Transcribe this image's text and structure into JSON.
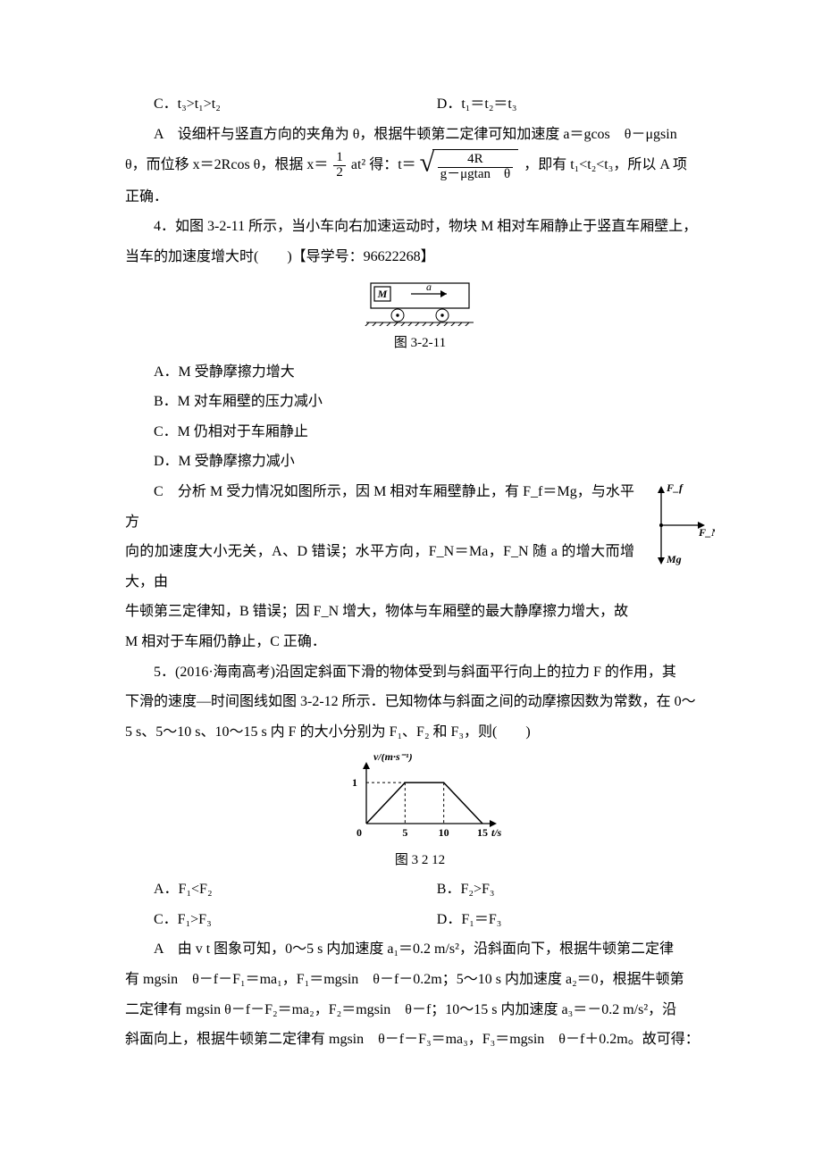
{
  "q3": {
    "optC": "C．t₃>t₁>t₂",
    "optD": "D．t₁＝t₂＝t₃",
    "answer_label": "A",
    "expl_line1": "设细杆与竖直方向的夹角为 θ，根据牛顿第二定律可知加速度 a＝gcos　θ－μgsin",
    "expl_line2a": "θ，而位移 x＝2Rcos θ，根据 x＝",
    "frac1_num": "1",
    "frac1_den": "2",
    "expl_line2b": "at² 得：t＝",
    "sqrt_num": "4R",
    "sqrt_den": "g－μgtan　θ",
    "expl_line2c": "，即有 t₁<t₂<t₃，所以 A 项",
    "expl_line3": "正确．"
  },
  "q4": {
    "stem1": "4．如图 3-2-11 所示，当小车向右加速运动时，物块 M 相对车厢静止于竖直车厢壁上，",
    "stem2": "当车的加速度增大时(　　)【导学号：96622268】",
    "fig_caption": "图 3-2-11",
    "optA": "A．M 受静摩擦力增大",
    "optB": "B．M 对车厢壁的压力减小",
    "optC": "C．M 仍相对于车厢静止",
    "optD": "D．M 受静摩擦力减小",
    "answer_label": "C",
    "expl1": "分析 M 受力情况如图所示，因 M 相对车厢壁静止，有 F_f＝Mg，与水平方",
    "expl2": "向的加速度大小无关，A、D 错误；水平方向，F_N＝Ma，F_N 随 a 的增大而增大，由",
    "expl3": "牛顿第三定律知，B 错误；因 F_N 增大，物体与车厢壁的最大静摩擦力增大，故",
    "expl4": "M 相对于车厢仍静止，C 正确．",
    "force_Ff": "F_f",
    "force_FN": "F_N",
    "force_Mg": "Mg",
    "cart_M": "M",
    "cart_a": "a"
  },
  "q5": {
    "stem1": "5．(2016·海南高考)沿固定斜面下滑的物体受到与斜面平行向上的拉力 F 的作用，其",
    "stem2": "下滑的速度—时间图线如图 3-2-12 所示．已知物体与斜面之间的动摩擦因数为常数，在 0～",
    "stem3": "5 s、5～10 s、10～15 s 内 F 的大小分别为 F₁、F₂ 和 F₃，则(　　)",
    "fig_caption": "图 3  2  12",
    "optA": "A．F₁<F₂",
    "optB": "B．F₂>F₃",
    "optC": "C．F₁>F₃",
    "optD": "D．F₁＝F₃",
    "answer_label": "A",
    "expl1": "由 v  t 图象可知，0～5 s 内加速度 a₁＝0.2 m/s²，沿斜面向下，根据牛顿第二定律",
    "expl2": "有 mgsin　θ－f－F₁＝ma₁，F₁＝mgsin　θ－f－0.2m；5～10 s 内加速度 a₂＝0，根据牛顿第",
    "expl3": "二定律有 mgsin θ－f－F₂＝ma₂，F₂＝mgsin　θ－f；10～15 s 内加速度 a₃＝－0.2 m/s²，沿",
    "expl4": "斜面向上，根据牛顿第二定律有 mgsin　θ－f－F₃＝ma₃，F₃＝mgsin　θ－f＋0.2m。故可得：",
    "chart": {
      "type": "line",
      "x_ticks": [
        0,
        5,
        10,
        15
      ],
      "y_ticks": [
        0,
        1
      ],
      "y_label": "v/(m·s⁻¹)",
      "x_label": "t/s",
      "points": [
        [
          0,
          0
        ],
        [
          5,
          1
        ],
        [
          10,
          1
        ],
        [
          15,
          0
        ]
      ],
      "axis_color": "#000000",
      "line_color": "#000000",
      "dash_color": "#000000",
      "title_fontsize": 12,
      "tick_fontsize": 12,
      "width": 170,
      "height": 90,
      "plot_xrange": [
        0,
        15
      ],
      "plot_yrange": [
        0,
        1.2
      ]
    }
  },
  "colors": {
    "text": "#000000",
    "background": "#ffffff"
  }
}
